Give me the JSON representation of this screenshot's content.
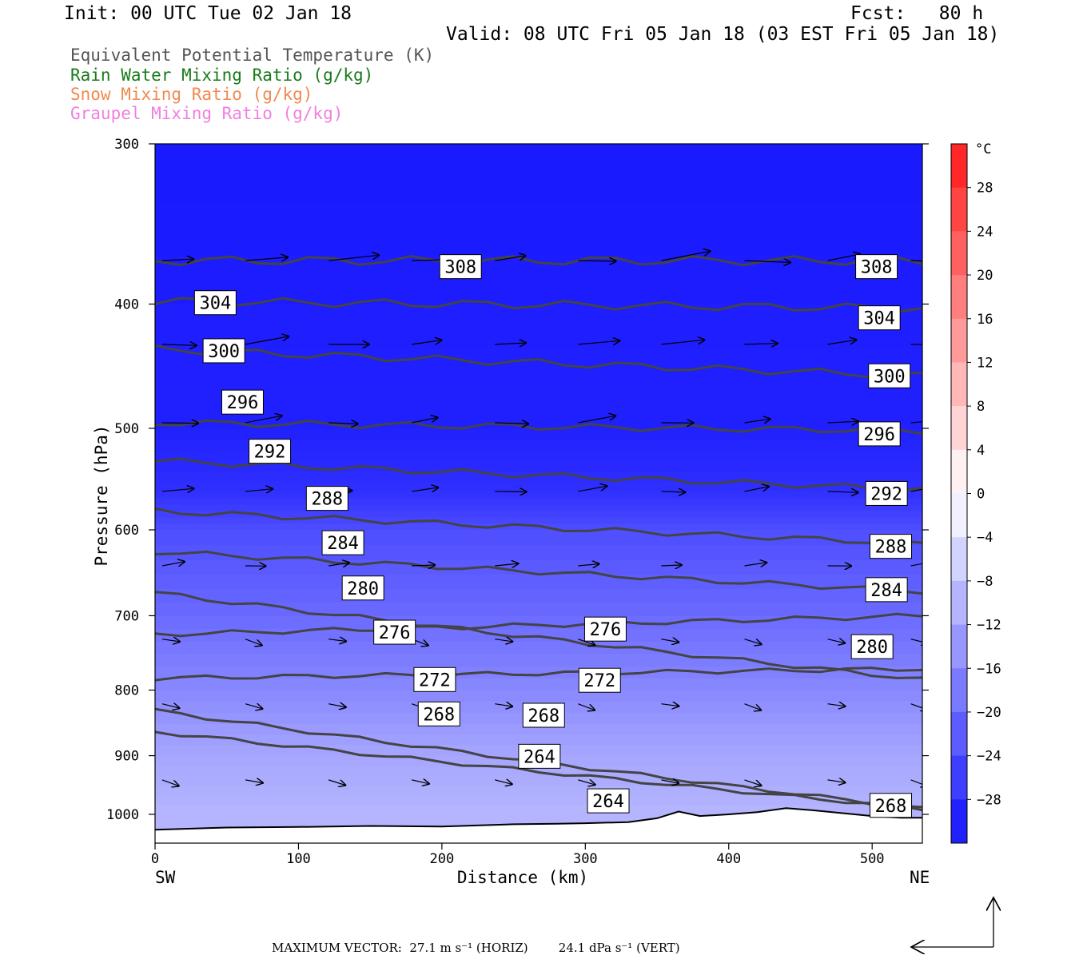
{
  "header": {
    "init": "Init: 00 UTC Tue 02 Jan 18",
    "fcst": "Fcst:   80 h",
    "valid": "Valid: 08 UTC Fri 05 Jan 18 (03 EST Fri 05 Jan 18)"
  },
  "legend": [
    {
      "label": "Equivalent Potential Temperature (K)",
      "color": "#555555"
    },
    {
      "label": "Rain Water Mixing Ratio (g/kg)",
      "color": "#1a7a1a"
    },
    {
      "label": "Snow Mixing Ratio (g/kg)",
      "color": "#f08a50"
    },
    {
      "label": "Graupel Mixing Ratio (g/kg)",
      "color": "#f080e0"
    }
  ],
  "footer": {
    "max_vector": "MAXIMUM VECTOR:  27.1 m s⁻¹ (HORIZ)        24.1 dPa s⁻¹ (VERT)"
  },
  "chart_data": {
    "type": "heatmap",
    "xlabel": "Distance (km)",
    "ylabel": "Pressure (hPa)",
    "xlim": [
      0,
      535
    ],
    "ylim": [
      1030,
      300
    ],
    "y_scale": "log",
    "x_ticks": [
      0,
      100,
      200,
      300,
      400,
      500
    ],
    "y_ticks": [
      300,
      400,
      500,
      600,
      700,
      800,
      900,
      1000
    ],
    "x_end_labels": {
      "left": "SW",
      "right": "NE"
    },
    "colorbar": {
      "unit": "°C",
      "ticks": [
        28,
        24,
        20,
        16,
        12,
        8,
        4,
        0,
        -4,
        -8,
        -12,
        -16,
        -20,
        -24,
        -28
      ],
      "range": [
        -32,
        32
      ]
    },
    "theta_e_contours": [
      {
        "value": 308,
        "pressure_start": 370,
        "pressure_end": 370
      },
      {
        "value": 304,
        "pressure_start": 398,
        "pressure_end": 403
      },
      {
        "value": 300,
        "pressure_start": 434,
        "pressure_end": 455
      },
      {
        "value": 296,
        "pressure_start": 495,
        "pressure_end": 502
      },
      {
        "value": 292,
        "pressure_start": 530,
        "pressure_end": 558
      },
      {
        "value": 288,
        "pressure_start": 580,
        "pressure_end": 615
      },
      {
        "value": 284,
        "pressure_start": 624,
        "pressure_end": 670
      },
      {
        "value": 280,
        "pressure_start": 672,
        "pressure_end": 785
      },
      {
        "value": 276,
        "pressure_start": 724,
        "pressure_end": 700
      },
      {
        "value": 272,
        "pressure_start": 783,
        "pressure_end": 770
      },
      {
        "value": 268,
        "pressure_start": 830,
        "pressure_end": 990
      },
      {
        "value": 264,
        "pressure_start": 862,
        "pressure_end": 990
      }
    ],
    "contour_labels": [
      {
        "value": "308",
        "x": 213,
        "p": 374
      },
      {
        "value": "308",
        "x": 503,
        "p": 374
      },
      {
        "value": "304",
        "x": 42,
        "p": 399
      },
      {
        "value": "304",
        "x": 505,
        "p": 410
      },
      {
        "value": "300",
        "x": 48,
        "p": 435
      },
      {
        "value": "300",
        "x": 512,
        "p": 455
      },
      {
        "value": "296",
        "x": 61,
        "p": 477
      },
      {
        "value": "296",
        "x": 505,
        "p": 505
      },
      {
        "value": "292",
        "x": 80,
        "p": 521
      },
      {
        "value": "292",
        "x": 510,
        "p": 562
      },
      {
        "value": "288",
        "x": 120,
        "p": 567
      },
      {
        "value": "288",
        "x": 513,
        "p": 618
      },
      {
        "value": "284",
        "x": 131,
        "p": 614
      },
      {
        "value": "284",
        "x": 510,
        "p": 668
      },
      {
        "value": "280",
        "x": 145,
        "p": 666
      },
      {
        "value": "280",
        "x": 500,
        "p": 740
      },
      {
        "value": "276",
        "x": 167,
        "p": 721
      },
      {
        "value": "276",
        "x": 314,
        "p": 717
      },
      {
        "value": "272",
        "x": 195,
        "p": 785
      },
      {
        "value": "272",
        "x": 310,
        "p": 786
      },
      {
        "value": "268",
        "x": 198,
        "p": 835
      },
      {
        "value": "268",
        "x": 271,
        "p": 837
      },
      {
        "value": "264",
        "x": 268,
        "p": 901
      },
      {
        "value": "264",
        "x": 316,
        "p": 976
      },
      {
        "value": "268",
        "x": 513,
        "p": 984
      }
    ],
    "temperature_field": [
      {
        "p": 300,
        "temp_c": -31
      },
      {
        "p": 500,
        "temp_c": -30
      },
      {
        "p": 560,
        "temp_c": -28
      },
      {
        "p": 600,
        "temp_c": -24
      },
      {
        "p": 700,
        "temp_c": -20
      },
      {
        "p": 800,
        "temp_c": -16
      },
      {
        "p": 900,
        "temp_c": -12
      },
      {
        "p": 1000,
        "temp_c": -10
      }
    ],
    "max_vector_horiz": 27.1,
    "max_vector_vert": 24.1
  }
}
